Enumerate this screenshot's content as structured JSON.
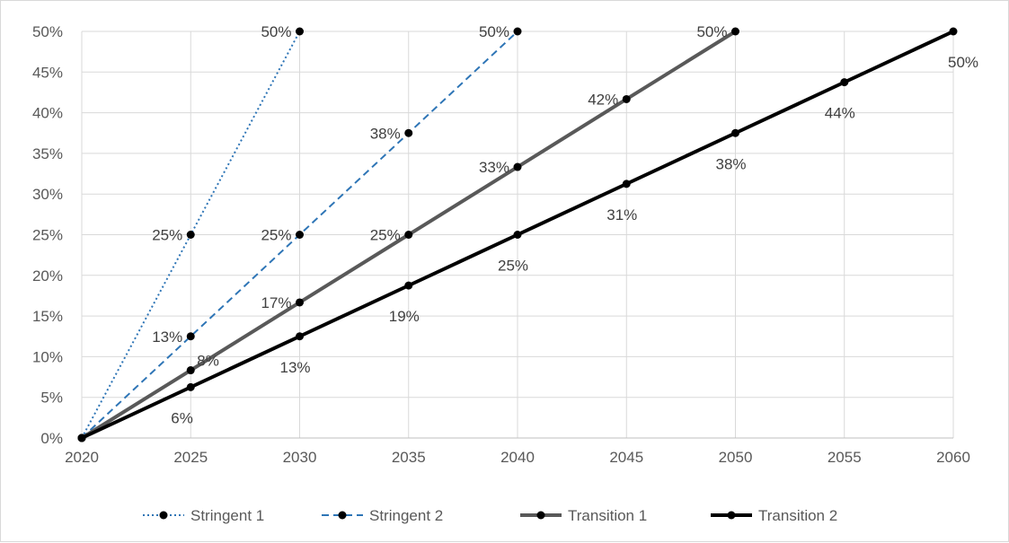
{
  "chart_data": {
    "type": "line",
    "title": "",
    "xlabel": "",
    "ylabel": "",
    "xlim": [
      2020,
      2060
    ],
    "ylim": [
      0,
      50
    ],
    "x_ticks": [
      "2020",
      "2025",
      "2030",
      "2035",
      "2040",
      "2045",
      "2050",
      "2055",
      "2060"
    ],
    "y_ticks": [
      "0%",
      "5%",
      "10%",
      "15%",
      "20%",
      "25%",
      "30%",
      "35%",
      "40%",
      "45%",
      "50%"
    ],
    "grid": true,
    "legend_position": "bottom",
    "series": [
      {
        "name": "Stringent 1",
        "color": "#2e75b6",
        "line_style": "dotted",
        "points": [
          {
            "x": 2020,
            "y": 0,
            "label": ""
          },
          {
            "x": 2025,
            "y": 25,
            "label": "25%"
          },
          {
            "x": 2030,
            "y": 50,
            "label": "50%"
          }
        ]
      },
      {
        "name": "Stringent 2",
        "color": "#2e75b6",
        "line_style": "dashed",
        "points": [
          {
            "x": 2020,
            "y": 0,
            "label": ""
          },
          {
            "x": 2025,
            "y": 12.5,
            "label": "13%"
          },
          {
            "x": 2030,
            "y": 25,
            "label": "25%"
          },
          {
            "x": 2035,
            "y": 37.5,
            "label": "38%"
          },
          {
            "x": 2040,
            "y": 50,
            "label": "50%"
          }
        ]
      },
      {
        "name": "Transition 1",
        "color": "#595959",
        "line_style": "solid",
        "points": [
          {
            "x": 2020,
            "y": 0,
            "label": ""
          },
          {
            "x": 2025,
            "y": 8.33,
            "label": "8%"
          },
          {
            "x": 2030,
            "y": 16.67,
            "label": "17%"
          },
          {
            "x": 2035,
            "y": 25,
            "label": "25%"
          },
          {
            "x": 2040,
            "y": 33.33,
            "label": "33%"
          },
          {
            "x": 2045,
            "y": 41.67,
            "label": "42%"
          },
          {
            "x": 2050,
            "y": 50,
            "label": "50%"
          }
        ]
      },
      {
        "name": "Transition 2",
        "color": "#000000",
        "line_style": "solid",
        "points": [
          {
            "x": 2020,
            "y": 0,
            "label": ""
          },
          {
            "x": 2025,
            "y": 6.25,
            "label": "6%"
          },
          {
            "x": 2030,
            "y": 12.5,
            "label": "13%"
          },
          {
            "x": 2035,
            "y": 18.75,
            "label": "19%"
          },
          {
            "x": 2040,
            "y": 25,
            "label": "25%"
          },
          {
            "x": 2045,
            "y": 31.25,
            "label": "31%"
          },
          {
            "x": 2050,
            "y": 37.5,
            "label": "38%"
          },
          {
            "x": 2055,
            "y": 43.75,
            "label": "44%"
          },
          {
            "x": 2060,
            "y": 50,
            "label": "50%"
          }
        ]
      }
    ]
  }
}
